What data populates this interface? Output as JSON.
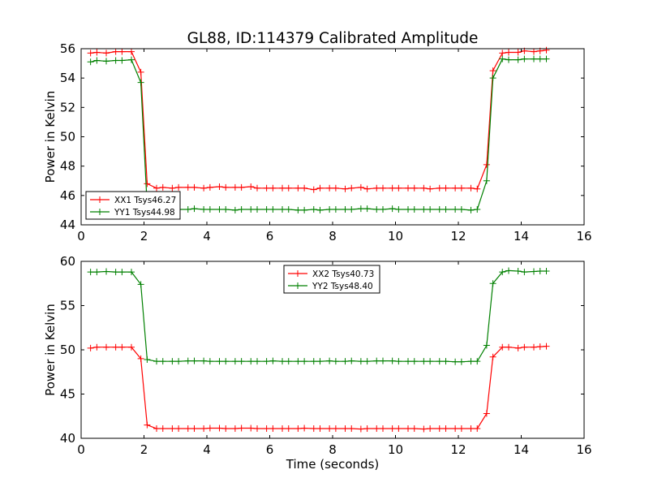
{
  "figure_title": "GL88, ID:114379 Calibrated Amplitude",
  "chart_data": [
    {
      "type": "line",
      "xlabel": "",
      "ylabel": "Power in Kelvin",
      "xlim": [
        0,
        16
      ],
      "ylim": [
        44,
        56
      ],
      "xticks": [
        0,
        2,
        4,
        6,
        8,
        10,
        12,
        14,
        16
      ],
      "yticks": [
        44,
        46,
        48,
        50,
        52,
        54,
        56
      ],
      "legend_position": "lower-left",
      "grid": false,
      "x": [
        0.3,
        0.5,
        0.8,
        1.1,
        1.3,
        1.6,
        1.9,
        2.1,
        2.4,
        2.6,
        2.9,
        3.1,
        3.4,
        3.6,
        3.9,
        4.1,
        4.4,
        4.6,
        4.9,
        5.1,
        5.4,
        5.6,
        5.9,
        6.1,
        6.4,
        6.6,
        6.9,
        7.1,
        7.4,
        7.6,
        7.9,
        8.1,
        8.4,
        8.6,
        8.9,
        9.1,
        9.4,
        9.6,
        9.9,
        10.1,
        10.4,
        10.6,
        10.9,
        11.1,
        11.4,
        11.6,
        11.9,
        12.1,
        12.4,
        12.6,
        12.9,
        13.1,
        13.4,
        13.6,
        13.9,
        14.1,
        14.4,
        14.6,
        14.8
      ],
      "series": [
        {
          "name": "XX1 Tsys46.27",
          "color": "#ff0000",
          "values": [
            55.7,
            55.75,
            55.7,
            55.8,
            55.8,
            55.8,
            54.4,
            46.8,
            46.5,
            46.55,
            46.5,
            46.55,
            46.55,
            46.55,
            46.5,
            46.55,
            46.6,
            46.55,
            46.55,
            46.55,
            46.6,
            46.5,
            46.5,
            46.5,
            46.5,
            46.5,
            46.5,
            46.5,
            46.4,
            46.5,
            46.5,
            46.5,
            46.45,
            46.5,
            46.55,
            46.45,
            46.5,
            46.5,
            46.5,
            46.5,
            46.5,
            46.5,
            46.5,
            46.45,
            46.5,
            46.5,
            46.5,
            46.5,
            46.5,
            46.45,
            48.1,
            54.5,
            55.7,
            55.75,
            55.75,
            55.85,
            55.8,
            55.85,
            55.9
          ]
        },
        {
          "name": "YY1 Tsys44.98",
          "color": "#008000",
          "values": [
            55.1,
            55.2,
            55.15,
            55.2,
            55.2,
            55.25,
            53.7,
            45.3,
            45.0,
            45.05,
            45.0,
            45.05,
            45.05,
            45.1,
            45.05,
            45.05,
            45.05,
            45.05,
            45.0,
            45.05,
            45.05,
            45.05,
            45.05,
            45.05,
            45.05,
            45.05,
            45.0,
            45.0,
            45.05,
            45.0,
            45.05,
            45.05,
            45.05,
            45.05,
            45.1,
            45.1,
            45.05,
            45.05,
            45.1,
            45.05,
            45.05,
            45.05,
            45.05,
            45.05,
            45.05,
            45.05,
            45.05,
            45.05,
            45.0,
            45.05,
            47.0,
            54.0,
            55.3,
            55.25,
            55.25,
            55.3,
            55.3,
            55.3,
            55.3
          ]
        }
      ]
    },
    {
      "type": "line",
      "xlabel": "Time (seconds)",
      "ylabel": "Power in Kelvin",
      "xlim": [
        0,
        16
      ],
      "ylim": [
        40,
        60
      ],
      "xticks": [
        0,
        2,
        4,
        6,
        8,
        10,
        12,
        14,
        16
      ],
      "yticks": [
        40,
        45,
        50,
        55,
        60
      ],
      "legend_position": "top-center",
      "grid": false,
      "x": [
        0.3,
        0.5,
        0.8,
        1.1,
        1.3,
        1.6,
        1.9,
        2.1,
        2.4,
        2.6,
        2.9,
        3.1,
        3.4,
        3.6,
        3.9,
        4.1,
        4.4,
        4.6,
        4.9,
        5.1,
        5.4,
        5.6,
        5.9,
        6.1,
        6.4,
        6.6,
        6.9,
        7.1,
        7.4,
        7.6,
        7.9,
        8.1,
        8.4,
        8.6,
        8.9,
        9.1,
        9.4,
        9.6,
        9.9,
        10.1,
        10.4,
        10.6,
        10.9,
        11.1,
        11.4,
        11.6,
        11.9,
        12.1,
        12.4,
        12.6,
        12.9,
        13.1,
        13.4,
        13.6,
        13.9,
        14.1,
        14.4,
        14.6,
        14.8
      ],
      "series": [
        {
          "name": "XX2 Tsys40.73",
          "color": "#ff0000",
          "values": [
            50.2,
            50.3,
            50.3,
            50.3,
            50.3,
            50.3,
            49.0,
            41.5,
            41.1,
            41.1,
            41.1,
            41.1,
            41.1,
            41.1,
            41.1,
            41.15,
            41.15,
            41.1,
            41.1,
            41.15,
            41.15,
            41.1,
            41.1,
            41.1,
            41.1,
            41.1,
            41.1,
            41.15,
            41.1,
            41.1,
            41.1,
            41.1,
            41.1,
            41.1,
            41.05,
            41.1,
            41.1,
            41.1,
            41.1,
            41.1,
            41.1,
            41.1,
            41.05,
            41.1,
            41.1,
            41.1,
            41.1,
            41.1,
            41.1,
            41.1,
            42.8,
            49.2,
            50.3,
            50.3,
            50.2,
            50.3,
            50.3,
            50.35,
            50.4
          ]
        },
        {
          "name": "YY2 Tsys48.40",
          "color": "#008000",
          "values": [
            58.8,
            58.8,
            58.85,
            58.8,
            58.8,
            58.8,
            57.4,
            48.9,
            48.7,
            48.7,
            48.7,
            48.7,
            48.75,
            48.75,
            48.75,
            48.7,
            48.7,
            48.7,
            48.7,
            48.7,
            48.7,
            48.7,
            48.7,
            48.75,
            48.7,
            48.7,
            48.7,
            48.7,
            48.7,
            48.7,
            48.75,
            48.7,
            48.7,
            48.75,
            48.7,
            48.7,
            48.75,
            48.75,
            48.75,
            48.7,
            48.7,
            48.7,
            48.7,
            48.7,
            48.7,
            48.7,
            48.65,
            48.65,
            48.7,
            48.7,
            50.5,
            57.5,
            58.8,
            58.95,
            58.9,
            58.8,
            58.85,
            58.9,
            58.9
          ]
        }
      ]
    }
  ]
}
